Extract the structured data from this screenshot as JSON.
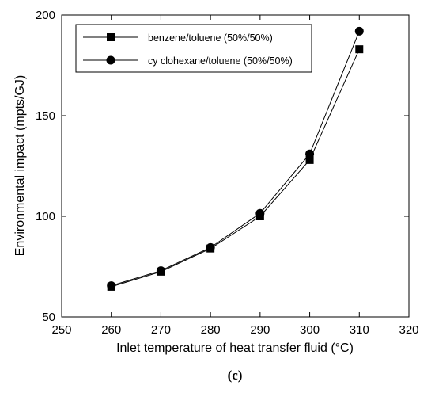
{
  "chart_data": {
    "type": "line",
    "title": "",
    "xlabel": "Inlet temperature of heat transfer fluid (°C)",
    "ylabel": "Environmental impact (mpts/GJ)",
    "xlim": [
      250,
      320
    ],
    "ylim": [
      50,
      200
    ],
    "xticks": [
      250,
      260,
      270,
      280,
      290,
      300,
      310,
      320
    ],
    "yticks": [
      50,
      100,
      150,
      200
    ],
    "grid": false,
    "legend_position": "top-left",
    "panel_label": "(c)",
    "series": [
      {
        "name": "benzene/toluene (50%/50%)",
        "marker": "square",
        "color": "#000000",
        "x": [
          260,
          270,
          280,
          290,
          300,
          310
        ],
        "y": [
          65,
          72.5,
          84,
          100,
          128,
          183
        ]
      },
      {
        "name": "cy clohexane/toluene (50%/50%)",
        "marker": "circle",
        "color": "#000000",
        "x": [
          260,
          270,
          280,
          290,
          300,
          310
        ],
        "y": [
          65.5,
          73,
          84.5,
          101.5,
          131,
          192
        ]
      }
    ]
  }
}
